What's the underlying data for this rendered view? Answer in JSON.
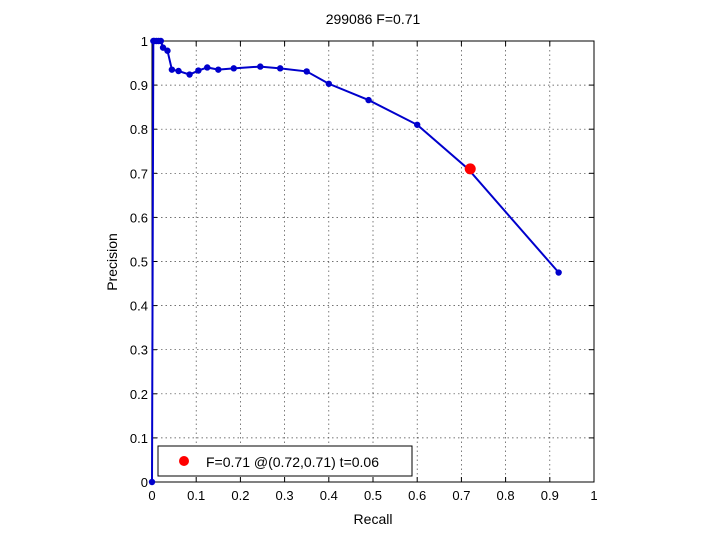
{
  "chart_data": {
    "type": "line",
    "title": "299086 F=0.71",
    "xlabel": "Recall",
    "ylabel": "Precision",
    "xlim": [
      0,
      1
    ],
    "ylim": [
      0,
      1
    ],
    "grid": true,
    "xticks": [
      "0",
      "0.1",
      "0.2",
      "0.3",
      "0.4",
      "0.5",
      "0.6",
      "0.7",
      "0.8",
      "0.9",
      "1"
    ],
    "yticks": [
      "0",
      "0.1",
      "0.2",
      "0.3",
      "0.4",
      "0.5",
      "0.6",
      "0.7",
      "0.8",
      "0.9",
      "1"
    ],
    "series": [
      {
        "color": "#0000cc",
        "x": [
          0.0,
          0.003,
          0.005,
          0.01,
          0.015,
          0.02,
          0.025,
          0.035,
          0.045,
          0.06,
          0.085,
          0.105,
          0.125,
          0.15,
          0.185,
          0.245,
          0.29,
          0.35,
          0.4,
          0.49,
          0.6,
          0.715,
          0.92
        ],
        "y": [
          0.0,
          1.0,
          1.0,
          1.0,
          1.0,
          1.0,
          0.985,
          0.978,
          0.935,
          0.932,
          0.924,
          0.933,
          0.94,
          0.935,
          0.938,
          0.942,
          0.938,
          0.931,
          0.903,
          0.866,
          0.81,
          0.71,
          0.475
        ]
      }
    ],
    "highlight": {
      "x": 0.72,
      "y": 0.71,
      "color": "#ff0000"
    },
    "legend": {
      "label": "F=0.71 @(0.72,0.71) t=0.06",
      "location": "bottom-left"
    }
  }
}
